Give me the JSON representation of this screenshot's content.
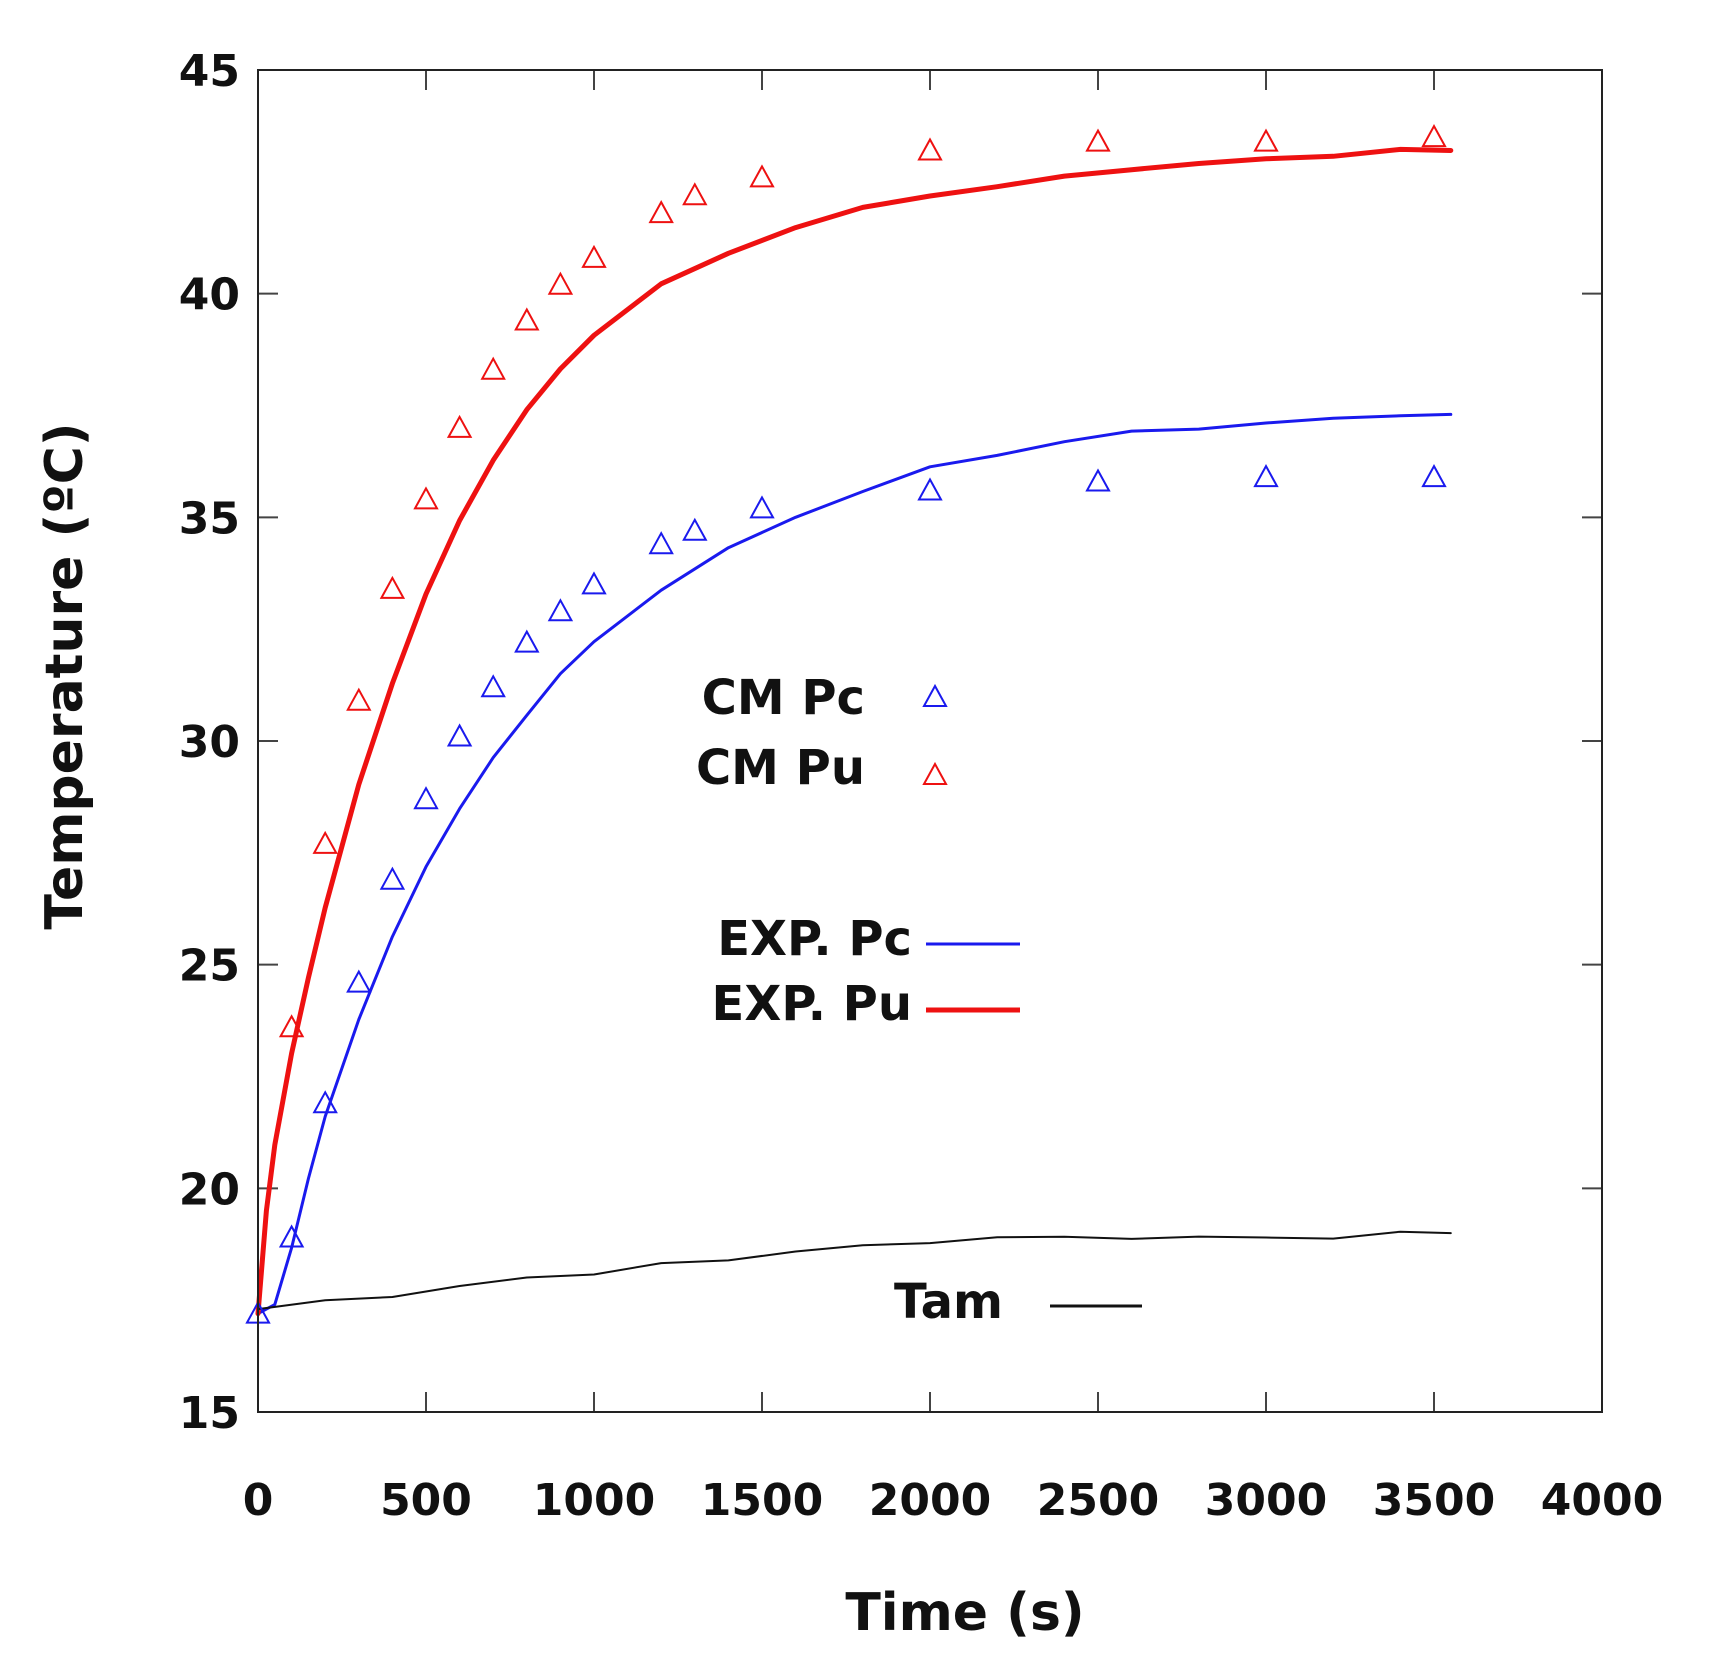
{
  "chart_data": {
    "type": "line+scatter",
    "title": "",
    "xlabel": "Time (s)",
    "ylabel": "Temperature (ºC)",
    "xlim": [
      0,
      4000
    ],
    "ylim": [
      15,
      45
    ],
    "x_ticks": [
      0,
      500,
      1000,
      1500,
      2000,
      2500,
      3000,
      3500,
      4000
    ],
    "y_ticks": [
      15,
      20,
      25,
      30,
      35,
      40,
      45
    ],
    "grid": false,
    "colors": {
      "blue": "#1a1aee",
      "red": "#ee1111",
      "black": "#111111"
    },
    "scatter_series": [
      {
        "name": "CM Pc",
        "color": "#1a1aee",
        "x": [
          0,
          100,
          200,
          300,
          400,
          500,
          600,
          700,
          800,
          900,
          1000,
          1200,
          1300,
          1500,
          2000,
          2500,
          3000,
          3500
        ],
        "y": [
          17.2,
          18.9,
          21.9,
          24.6,
          26.9,
          28.7,
          30.1,
          31.2,
          32.2,
          32.9,
          33.5,
          34.4,
          34.7,
          35.2,
          35.6,
          35.8,
          35.9,
          35.9
        ]
      },
      {
        "name": "CM Pu",
        "color": "#ee1111",
        "x": [
          100,
          200,
          300,
          400,
          500,
          600,
          700,
          800,
          900,
          1000,
          1200,
          1300,
          1500,
          2000,
          2500,
          3000,
          3500
        ],
        "y": [
          23.6,
          27.7,
          30.9,
          33.4,
          35.4,
          37.0,
          38.3,
          39.4,
          40.2,
          40.8,
          41.8,
          42.2,
          42.6,
          43.2,
          43.4,
          43.4,
          43.5
        ]
      }
    ],
    "line_series": [
      {
        "name": "EXP. Pc",
        "color": "#1a1aee",
        "width": 3,
        "x": [
          0,
          50,
          100,
          150,
          200,
          300,
          400,
          500,
          600,
          700,
          800,
          900,
          1000,
          1200,
          1400,
          1600,
          1800,
          2000,
          2200,
          2400,
          2600,
          2800,
          3000,
          3200,
          3400,
          3550
        ],
        "y": [
          17.2,
          17.4,
          18.7,
          20.2,
          21.6,
          23.8,
          25.6,
          27.2,
          28.5,
          29.6,
          30.6,
          31.5,
          32.2,
          33.4,
          34.3,
          35.0,
          35.6,
          36.1,
          36.4,
          36.7,
          36.9,
          37.0,
          37.1,
          37.2,
          37.3,
          37.3
        ]
      },
      {
        "name": "EXP. Pu",
        "color": "#ee1111",
        "width": 5,
        "x": [
          0,
          25,
          50,
          100,
          150,
          200,
          300,
          400,
          500,
          600,
          700,
          800,
          900,
          1000,
          1200,
          1400,
          1600,
          1800,
          2000,
          2200,
          2400,
          2600,
          2800,
          3000,
          3200,
          3400,
          3550
        ],
        "y": [
          17.2,
          19.5,
          21.0,
          23.0,
          24.7,
          26.3,
          29.0,
          31.3,
          33.3,
          34.9,
          36.3,
          37.4,
          38.3,
          39.1,
          40.2,
          40.9,
          41.5,
          41.9,
          42.2,
          42.4,
          42.6,
          42.8,
          42.9,
          43.0,
          43.1,
          43.2,
          43.2
        ]
      },
      {
        "name": "Tam",
        "color": "#111111",
        "width": 2,
        "x": [
          0,
          200,
          400,
          600,
          800,
          1000,
          1200,
          1400,
          1600,
          1800,
          2000,
          2200,
          2400,
          2600,
          2800,
          3000,
          3200,
          3400,
          3550
        ],
        "y": [
          17.3,
          17.5,
          17.6,
          17.8,
          18.0,
          18.1,
          18.3,
          18.4,
          18.6,
          18.7,
          18.8,
          18.9,
          18.9,
          18.9,
          18.9,
          18.9,
          18.9,
          19.0,
          19.0
        ]
      }
    ],
    "legend": [
      {
        "label": "CM Pc",
        "marker": "triangle",
        "color": "#1a1aee"
      },
      {
        "label": "CM Pu",
        "marker": "triangle",
        "color": "#ee1111"
      },
      {
        "label": "EXP. Pc",
        "marker": "line",
        "color": "#1a1aee"
      },
      {
        "label": "EXP. Pu",
        "marker": "line",
        "color": "#ee1111"
      },
      {
        "label": "Tam",
        "marker": "line",
        "color": "#111111"
      }
    ]
  }
}
